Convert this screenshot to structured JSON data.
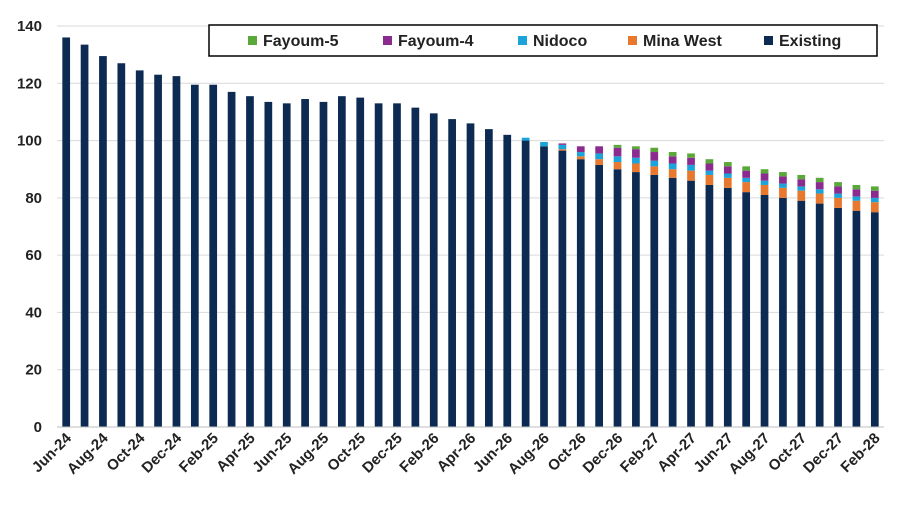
{
  "chart_data": {
    "type": "bar",
    "stacked": true,
    "title": "",
    "xlabel": "",
    "ylabel": "",
    "ylim": [
      0,
      140
    ],
    "yticks": [
      0,
      20,
      40,
      60,
      80,
      100,
      120,
      140
    ],
    "grid": true,
    "legend_position": "top-right",
    "categories": [
      "Jun-24",
      "Jul-24",
      "Aug-24",
      "Sep-24",
      "Oct-24",
      "Nov-24",
      "Dec-24",
      "Jan-25",
      "Feb-25",
      "Mar-25",
      "Apr-25",
      "May-25",
      "Jun-25",
      "Jul-25",
      "Aug-25",
      "Sep-25",
      "Oct-25",
      "Nov-25",
      "Dec-25",
      "Jan-26",
      "Feb-26",
      "Mar-26",
      "Apr-26",
      "May-26",
      "Jun-26",
      "Jul-26",
      "Aug-26",
      "Sep-26",
      "Oct-26",
      "Nov-26",
      "Dec-26",
      "Jan-27",
      "Feb-27",
      "Mar-27",
      "Apr-27",
      "May-27",
      "Jun-27",
      "Jul-27",
      "Aug-27",
      "Sep-27",
      "Oct-27",
      "Nov-27",
      "Dec-27",
      "Jan-28",
      "Feb-28"
    ],
    "tick_labels": [
      "Jun-24",
      "Aug-24",
      "Oct-24",
      "Dec-24",
      "Feb-25",
      "Apr-25",
      "Jun-25",
      "Aug-25",
      "Oct-25",
      "Dec-25",
      "Feb-26",
      "Apr-26",
      "Jun-26",
      "Aug-26",
      "Oct-26",
      "Dec-26",
      "Feb-27",
      "Apr-27",
      "Jun-27",
      "Aug-27",
      "Oct-27",
      "Dec-27",
      "Feb-28"
    ],
    "series": [
      {
        "name": "Existing",
        "color": "#0d2b52",
        "values": [
          136,
          133.5,
          129.5,
          127,
          124.5,
          123,
          122.5,
          119.5,
          119.5,
          117,
          115.5,
          113.5,
          113,
          114.5,
          113.5,
          115.5,
          115,
          113,
          113,
          111.5,
          109.5,
          107.5,
          106,
          104,
          102,
          100,
          98,
          96.5,
          93.5,
          91.5,
          90,
          89,
          88,
          87,
          86,
          84.5,
          83.5,
          82,
          81,
          80,
          79,
          78,
          76.5,
          75.5,
          75
        ]
      },
      {
        "name": "Mina West",
        "color": "#e8782e",
        "values": [
          0,
          0,
          0,
          0,
          0,
          0,
          0,
          0,
          0,
          0,
          0,
          0,
          0,
          0,
          0,
          0,
          0,
          0,
          0,
          0,
          0,
          0,
          0,
          0,
          0,
          0,
          0,
          0.5,
          1,
          2,
          2.5,
          3,
          3,
          3,
          3.5,
          3.5,
          3.5,
          3.5,
          3.5,
          3.5,
          3.5,
          3.5,
          3.5,
          3.5,
          3.5
        ]
      },
      {
        "name": "Nidoco",
        "color": "#1ca3d9",
        "values": [
          0,
          0,
          0,
          0,
          0,
          0,
          0,
          0,
          0,
          0,
          0,
          0,
          0,
          0,
          0,
          0,
          0,
          0,
          0,
          0,
          0,
          0,
          0,
          0,
          0,
          1,
          1.5,
          1.5,
          1.5,
          2,
          2,
          2,
          2,
          2,
          2,
          1.5,
          1.5,
          1.5,
          1.5,
          1.5,
          1.5,
          1.5,
          1.5,
          1.5,
          1.5
        ]
      },
      {
        "name": "Fayoum-4",
        "color": "#8b2b8f",
        "values": [
          0,
          0,
          0,
          0,
          0,
          0,
          0,
          0,
          0,
          0,
          0,
          0,
          0,
          0,
          0,
          0,
          0,
          0,
          0,
          0,
          0,
          0,
          0,
          0,
          0,
          0,
          0,
          0.5,
          2,
          2.5,
          3,
          3,
          3,
          2.5,
          2.5,
          2.5,
          2.5,
          2.5,
          2.5,
          2.5,
          2.5,
          2.5,
          2.5,
          2.5,
          2.5
        ]
      },
      {
        "name": "Fayoum-5",
        "color": "#5aa83a",
        "values": [
          0,
          0,
          0,
          0,
          0,
          0,
          0,
          0,
          0,
          0,
          0,
          0,
          0,
          0,
          0,
          0,
          0,
          0,
          0,
          0,
          0,
          0,
          0,
          0,
          0,
          0,
          0,
          0,
          0,
          0,
          1,
          1,
          1.5,
          1.5,
          1.5,
          1.5,
          1.5,
          1.5,
          1.5,
          1.5,
          1.5,
          1.5,
          1.5,
          1.5,
          1.5
        ]
      }
    ],
    "legend": [
      "Fayoum-5",
      "Fayoum-4",
      "Nidoco",
      "Mina West",
      "Existing"
    ]
  }
}
